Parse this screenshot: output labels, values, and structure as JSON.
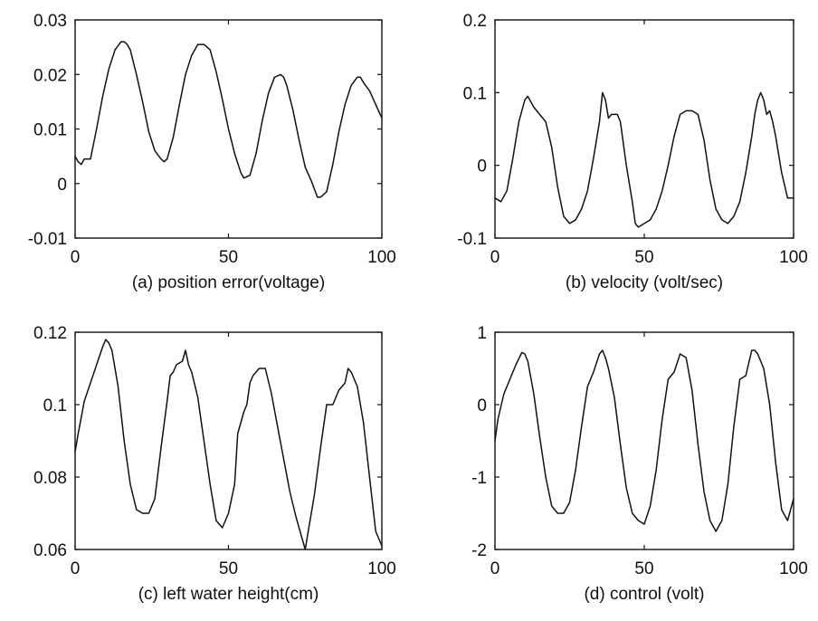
{
  "chart_data": [
    {
      "type": "line",
      "caption": "(a) position error(voltage)",
      "xlim": [
        0,
        100
      ],
      "ylim": [
        -0.01,
        0.03
      ],
      "xticks": [
        0,
        50,
        100
      ],
      "xtick_labels": [
        "0",
        "50",
        "100"
      ],
      "yticks": [
        -0.01,
        0,
        0.01,
        0.02,
        0.03
      ],
      "ytick_labels": [
        "-0.01",
        "0",
        "0.01",
        "0.02",
        "0.03"
      ],
      "grid": false,
      "series": [
        {
          "x": [
            0,
            1,
            2,
            3,
            5,
            7,
            9,
            11,
            13,
            15,
            16,
            17,
            18,
            20,
            22,
            24,
            26,
            28,
            29,
            30,
            32,
            34,
            36,
            38,
            40,
            42,
            43,
            44,
            46,
            48,
            50,
            52,
            54,
            55,
            57,
            59,
            61,
            63,
            65,
            67,
            68,
            69,
            71,
            73,
            75,
            77,
            79,
            80,
            82,
            84,
            86,
            88,
            90,
            92,
            93,
            94,
            96,
            98,
            100
          ],
          "y": [
            0.005,
            0.004,
            0.0035,
            0.0045,
            0.0045,
            0.01,
            0.016,
            0.021,
            0.0245,
            0.026,
            0.026,
            0.0255,
            0.0245,
            0.02,
            0.015,
            0.0095,
            0.006,
            0.0045,
            0.004,
            0.0045,
            0.0085,
            0.0145,
            0.02,
            0.0235,
            0.0255,
            0.0255,
            0.025,
            0.0245,
            0.0205,
            0.0155,
            0.01,
            0.0055,
            0.002,
            0.001,
            0.0015,
            0.0055,
            0.0115,
            0.0165,
            0.0195,
            0.02,
            0.0195,
            0.018,
            0.0135,
            0.008,
            0.003,
            0.0005,
            -0.0025,
            -0.0025,
            -0.0015,
            0.0035,
            0.0095,
            0.0145,
            0.018,
            0.0195,
            0.0195,
            0.0185,
            0.017,
            0.0145,
            0.012
          ]
        }
      ]
    },
    {
      "type": "line",
      "caption": "(b) velocity (volt/sec)",
      "xlim": [
        0,
        100
      ],
      "ylim": [
        -0.1,
        0.2
      ],
      "xticks": [
        0,
        50,
        100
      ],
      "xtick_labels": [
        "0",
        "50",
        "100"
      ],
      "yticks": [
        -0.1,
        0,
        0.1,
        0.2
      ],
      "ytick_labels": [
        "-0.1",
        "0",
        "0.1",
        "0.2"
      ],
      "grid": false,
      "series": [
        {
          "x": [
            0,
            2,
            4,
            6,
            8,
            10,
            11,
            13,
            15,
            17,
            19,
            21,
            23,
            25,
            27,
            29,
            31,
            33,
            35,
            36,
            37,
            38,
            39,
            41,
            42,
            44,
            46,
            47,
            48,
            50,
            52,
            54,
            56,
            58,
            60,
            62,
            64,
            66,
            68,
            70,
            72,
            74,
            76,
            78,
            80,
            82,
            84,
            86,
            87,
            88,
            89,
            90,
            91,
            92,
            93,
            94,
            96,
            98,
            100
          ],
          "y": [
            -0.045,
            -0.05,
            -0.035,
            0.01,
            0.06,
            0.09,
            0.095,
            0.08,
            0.07,
            0.06,
            0.025,
            -0.03,
            -0.07,
            -0.08,
            -0.075,
            -0.06,
            -0.035,
            0.01,
            0.06,
            0.1,
            0.09,
            0.065,
            0.07,
            0.07,
            0.06,
            0.0,
            -0.05,
            -0.08,
            -0.085,
            -0.08,
            -0.075,
            -0.06,
            -0.035,
            0.0,
            0.04,
            0.07,
            0.075,
            0.075,
            0.07,
            0.035,
            -0.02,
            -0.06,
            -0.075,
            -0.08,
            -0.07,
            -0.05,
            -0.01,
            0.04,
            0.07,
            0.09,
            0.1,
            0.09,
            0.07,
            0.075,
            0.06,
            0.04,
            -0.01,
            -0.045,
            -0.045
          ]
        }
      ]
    },
    {
      "type": "line",
      "caption": "(c) left water height(cm)",
      "xlim": [
        0,
        100
      ],
      "ylim": [
        0.06,
        0.12
      ],
      "xticks": [
        0,
        50,
        100
      ],
      "xtick_labels": [
        "0",
        "50",
        "100"
      ],
      "yticks": [
        0.06,
        0.08,
        0.1,
        0.12
      ],
      "ytick_labels": [
        "0.06",
        "0.08",
        "0.1",
        "0.12"
      ],
      "grid": false,
      "series": [
        {
          "x": [
            0,
            1,
            3,
            5,
            7,
            9,
            10,
            11,
            12,
            14,
            16,
            18,
            20,
            22,
            24,
            26,
            28,
            30,
            31,
            32,
            33,
            35,
            36,
            37,
            38,
            40,
            42,
            44,
            46,
            48,
            50,
            52,
            53,
            55,
            56,
            57,
            58,
            60,
            62,
            64,
            66,
            68,
            70,
            72,
            74,
            75,
            76,
            78,
            80,
            82,
            84,
            86,
            88,
            89,
            90,
            92,
            94,
            96,
            98,
            100
          ],
          "y": [
            0.087,
            0.092,
            0.101,
            0.106,
            0.111,
            0.116,
            0.118,
            0.117,
            0.115,
            0.105,
            0.09,
            0.078,
            0.071,
            0.07,
            0.07,
            0.074,
            0.088,
            0.101,
            0.108,
            0.109,
            0.111,
            0.112,
            0.115,
            0.111,
            0.109,
            0.102,
            0.09,
            0.078,
            0.068,
            0.066,
            0.07,
            0.078,
            0.092,
            0.098,
            0.1,
            0.106,
            0.108,
            0.11,
            0.11,
            0.103,
            0.094,
            0.085,
            0.076,
            0.069,
            0.063,
            0.06,
            0.065,
            0.075,
            0.088,
            0.1,
            0.1,
            0.104,
            0.106,
            0.11,
            0.109,
            0.105,
            0.095,
            0.08,
            0.065,
            0.061
          ]
        }
      ]
    },
    {
      "type": "line",
      "caption": "(d) control (volt)",
      "xlim": [
        0,
        100
      ],
      "ylim": [
        -2,
        1
      ],
      "xticks": [
        0,
        50,
        100
      ],
      "xtick_labels": [
        "0",
        "50",
        "100"
      ],
      "yticks": [
        -2,
        -1,
        0,
        1
      ],
      "ytick_labels": [
        "-2",
        "-1",
        "0",
        "1"
      ],
      "grid": false,
      "series": [
        {
          "x": [
            0,
            1,
            3,
            5,
            7,
            9,
            10,
            11,
            13,
            15,
            17,
            19,
            21,
            23,
            25,
            27,
            29,
            31,
            33,
            35,
            36,
            37,
            38,
            40,
            42,
            44,
            46,
            48,
            50,
            52,
            54,
            56,
            58,
            60,
            62,
            64,
            66,
            68,
            70,
            72,
            74,
            76,
            78,
            80,
            82,
            84,
            86,
            87,
            88,
            90,
            92,
            94,
            96,
            98,
            100
          ],
          "y": [
            -0.5,
            -0.2,
            0.15,
            0.35,
            0.55,
            0.72,
            0.7,
            0.6,
            0.15,
            -0.45,
            -1.0,
            -1.4,
            -1.5,
            -1.5,
            -1.35,
            -0.9,
            -0.3,
            0.25,
            0.45,
            0.7,
            0.75,
            0.65,
            0.5,
            0.1,
            -0.55,
            -1.15,
            -1.5,
            -1.6,
            -1.65,
            -1.4,
            -0.9,
            -0.2,
            0.35,
            0.45,
            0.7,
            0.65,
            0.2,
            -0.55,
            -1.2,
            -1.6,
            -1.75,
            -1.6,
            -1.1,
            -0.3,
            0.35,
            0.4,
            0.75,
            0.75,
            0.7,
            0.5,
            0.0,
            -0.8,
            -1.45,
            -1.6,
            -1.3
          ]
        }
      ]
    }
  ]
}
